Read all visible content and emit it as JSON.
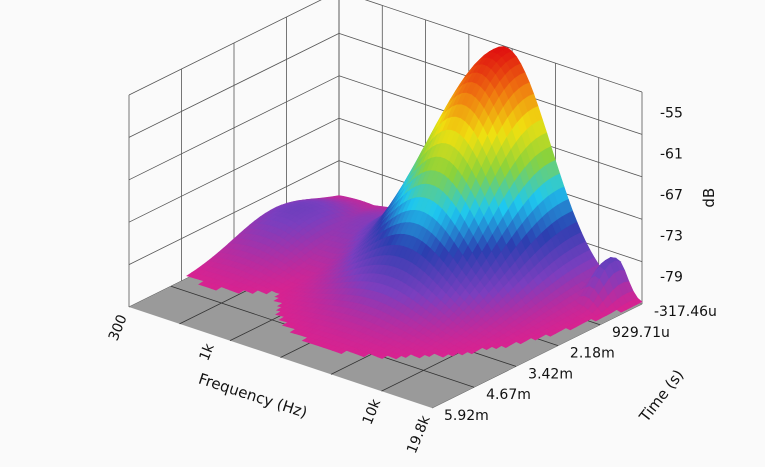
{
  "chart_data": {
    "type": "surface3d",
    "title": "",
    "x_axis": {
      "label": "Frequency (Hz)",
      "scale": "log",
      "ticks": [
        "300",
        "1k",
        "10k",
        "19.8k"
      ],
      "tick_values": [
        300,
        1000,
        10000,
        19800
      ],
      "range": [
        300,
        19800
      ]
    },
    "y_axis": {
      "label": "Time (s)",
      "ticks": [
        "-317.46u",
        "929.71u",
        "2.18m",
        "3.42m",
        "4.67m",
        "5.92m"
      ],
      "tick_values": [
        -0.00031746,
        0.00092971,
        0.00218,
        0.00342,
        0.00467,
        0.00592
      ],
      "range": [
        -0.00031746,
        0.00592
      ]
    },
    "z_axis": {
      "label": "dB",
      "ticks": [
        "-55",
        "-61",
        "-67",
        "-73",
        "-79"
      ],
      "tick_values": [
        -55,
        -61,
        -67,
        -73,
        -79
      ],
      "range": [
        -83,
        -52
      ]
    },
    "colormap": [
      "#e0208c",
      "#7a3fbf",
      "#2b3fb0",
      "#1ec8f0",
      "#8cd23a",
      "#f0e010",
      "#f07a10",
      "#e01010"
    ],
    "floor_color": "#9a9a9a",
    "grid": true,
    "peaks": [
      {
        "frequency_hz": 3000,
        "time_s": -0.0002,
        "db": -52,
        "freq_width_octaves": 0.9,
        "time_width_s": 0.0018
      },
      {
        "frequency_hz": 1700,
        "time_s": 0.0008,
        "db": -74,
        "freq_width_octaves": 0.8,
        "time_width_s": 0.0012
      },
      {
        "frequency_hz": 900,
        "time_s": 0.001,
        "db": -79,
        "freq_width_octaves": 0.9,
        "time_width_s": 0.0012
      },
      {
        "frequency_hz": 420,
        "time_s": 0.0016,
        "db": -78,
        "freq_width_octaves": 0.7,
        "time_width_s": 0.0012
      },
      {
        "frequency_hz": 14000,
        "time_s": -0.0001,
        "db": -77,
        "freq_width_octaves": 0.2,
        "time_width_s": 0.0005
      }
    ]
  }
}
